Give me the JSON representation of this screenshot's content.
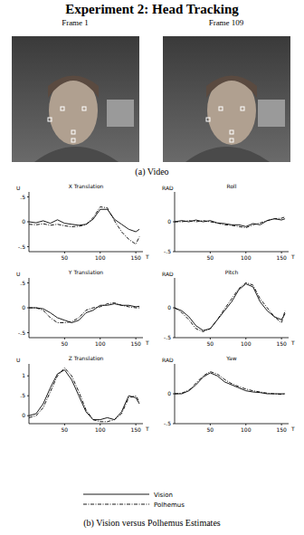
{
  "figure": {
    "title": "Experiment 2: Head Tracking",
    "frames": [
      "Frame 1",
      "Frame 109"
    ],
    "caption_a": "(a) Video",
    "caption_b": "(b) Vision versus Polhemus Estimates"
  },
  "chart_data": [
    {
      "type": "line",
      "title": "X Translation",
      "ylabel": "U",
      "xlabel": "T",
      "x": [
        0,
        10,
        20,
        30,
        40,
        50,
        60,
        70,
        80,
        90,
        100,
        110,
        120,
        130,
        140,
        150,
        155
      ],
      "xlim": [
        0,
        160
      ],
      "xticks": [
        50,
        100,
        150
      ],
      "ylim": [
        -0.6,
        0.6
      ],
      "yticks": [
        {
          "value": 0.5,
          "label": ".5"
        },
        0,
        {
          "value": -0.5,
          "label": "-.5"
        }
      ],
      "series": [
        {
          "name": "Vision",
          "color": "#000000",
          "line_style": "solid",
          "values": [
            0,
            -0.02,
            0.02,
            -0.03,
            0.04,
            -0.03,
            -0.05,
            -0.07,
            -0.05,
            0.05,
            0.25,
            0.25,
            0.05,
            -0.05,
            -0.15,
            -0.2,
            -0.15
          ]
        },
        {
          "name": "Polhemus",
          "color": "#000000",
          "line_style": "dashdot",
          "values": [
            -0.05,
            -0.06,
            -0.04,
            -0.07,
            -0.05,
            -0.08,
            -0.1,
            -0.09,
            -0.06,
            0.08,
            0.3,
            0.28,
            0.02,
            -0.2,
            -0.35,
            -0.45,
            -0.3
          ]
        }
      ]
    },
    {
      "type": "line",
      "title": "Y Translation",
      "ylabel": "U",
      "xlabel": "T",
      "x": [
        0,
        10,
        20,
        30,
        40,
        50,
        60,
        70,
        80,
        90,
        100,
        110,
        120,
        130,
        140,
        150,
        155
      ],
      "xlim": [
        0,
        160
      ],
      "xticks": [
        50,
        100,
        150
      ],
      "ylim": [
        -0.6,
        0.6
      ],
      "yticks": [
        {
          "value": 0.5,
          "label": ".5"
        },
        0,
        {
          "value": -0.5,
          "label": "-.5"
        }
      ],
      "series": [
        {
          "name": "Vision",
          "color": "#000000",
          "line_style": "solid",
          "values": [
            0,
            0,
            -0.02,
            -0.1,
            -0.2,
            -0.25,
            -0.3,
            -0.25,
            -0.1,
            -0.05,
            0.05,
            0.05,
            0.08,
            0.05,
            0.05,
            0.02,
            0.03
          ]
        },
        {
          "name": "Polhemus",
          "color": "#000000",
          "line_style": "dashdot",
          "values": [
            0,
            0,
            -0.05,
            -0.2,
            -0.3,
            -0.3,
            -0.28,
            -0.2,
            -0.05,
            0,
            0.02,
            0.08,
            0.1,
            0.05,
            0.02,
            0,
            0
          ]
        }
      ]
    },
    {
      "type": "line",
      "title": "Z Translation",
      "ylabel": "U",
      "xlabel": "T",
      "x": [
        0,
        10,
        20,
        30,
        40,
        50,
        60,
        70,
        80,
        90,
        100,
        110,
        120,
        130,
        140,
        150,
        155
      ],
      "xlim": [
        0,
        160
      ],
      "xticks": [
        50,
        100,
        150
      ],
      "ylim": [
        -0.2,
        1.3
      ],
      "yticks": [
        1,
        {
          "value": 0.5,
          "label": ".5"
        },
        0
      ],
      "series": [
        {
          "name": "Vision",
          "color": "#000000",
          "line_style": "solid",
          "values": [
            0,
            0.05,
            0.3,
            0.7,
            1.05,
            1.15,
            0.9,
            0.5,
            0.1,
            -0.1,
            -0.1,
            -0.05,
            -0.1,
            0.1,
            0.5,
            0.45,
            0.3
          ]
        },
        {
          "name": "Polhemus",
          "color": "#000000",
          "line_style": "dashdot",
          "values": [
            -0.05,
            0,
            0.2,
            0.6,
            1.0,
            1.2,
            1.0,
            0.6,
            0.15,
            -0.1,
            -0.15,
            -0.15,
            -0.1,
            0.05,
            0.45,
            0.5,
            0.35
          ]
        }
      ]
    },
    {
      "type": "line",
      "title": "Roll",
      "ylabel": "RAD",
      "xlabel": "T",
      "x": [
        0,
        10,
        20,
        30,
        40,
        50,
        60,
        70,
        80,
        90,
        100,
        110,
        120,
        130,
        140,
        150,
        155
      ],
      "xlim": [
        0,
        160
      ],
      "xticks": [
        50,
        100,
        150
      ],
      "ylim": [
        -0.5,
        0.5
      ],
      "yticks": [
        0,
        {
          "value": -0.5,
          "label": "-.5"
        }
      ],
      "series": [
        {
          "name": "Vision",
          "color": "#000000",
          "line_style": "solid",
          "values": [
            0,
            0.02,
            0,
            0.03,
            0,
            0.02,
            -0.02,
            -0.03,
            -0.05,
            -0.05,
            -0.08,
            -0.03,
            -0.05,
            0.02,
            0.05,
            0.03,
            0.05
          ]
        },
        {
          "name": "Polhemus",
          "color": "#000000",
          "line_style": "dashdot",
          "values": [
            0,
            0,
            0.02,
            0,
            0.02,
            0,
            -0.02,
            -0.05,
            -0.06,
            -0.08,
            -0.1,
            -0.05,
            -0.02,
            0.02,
            0.05,
            0.06,
            0.08
          ]
        }
      ]
    },
    {
      "type": "line",
      "title": "Pitch",
      "ylabel": "RAD",
      "xlabel": "T",
      "x": [
        0,
        10,
        20,
        30,
        40,
        50,
        60,
        70,
        80,
        90,
        100,
        110,
        120,
        130,
        140,
        150,
        155
      ],
      "xlim": [
        0,
        160
      ],
      "xticks": [
        50,
        100,
        150
      ],
      "ylim": [
        -0.5,
        0.5
      ],
      "yticks": [
        0,
        {
          "value": -0.5,
          "label": "-.5"
        }
      ],
      "series": [
        {
          "name": "Vision",
          "color": "#000000",
          "line_style": "solid",
          "values": [
            0,
            -0.05,
            -0.15,
            -0.3,
            -0.38,
            -0.35,
            -0.2,
            -0.05,
            0.1,
            0.3,
            0.4,
            0.35,
            0.1,
            -0.05,
            -0.15,
            -0.2,
            -0.1
          ]
        },
        {
          "name": "Polhemus",
          "color": "#000000",
          "line_style": "dashdot",
          "values": [
            0,
            -0.08,
            -0.2,
            -0.35,
            -0.4,
            -0.35,
            -0.2,
            -0.02,
            0.15,
            0.32,
            0.42,
            0.38,
            0.15,
            0,
            -0.15,
            -0.25,
            -0.05
          ]
        }
      ]
    },
    {
      "type": "line",
      "title": "Yaw",
      "ylabel": "RAD",
      "xlabel": "T",
      "x": [
        0,
        10,
        20,
        30,
        40,
        50,
        60,
        70,
        80,
        90,
        100,
        110,
        120,
        130,
        140,
        150,
        155
      ],
      "xlim": [
        0,
        160
      ],
      "xticks": [
        50,
        100,
        150
      ],
      "ylim": [
        -0.5,
        0.5
      ],
      "yticks": [
        0,
        {
          "value": -0.5,
          "label": "-.5"
        }
      ],
      "series": [
        {
          "name": "Vision",
          "color": "#000000",
          "line_style": "solid",
          "values": [
            0,
            0,
            0.05,
            0.15,
            0.28,
            0.35,
            0.3,
            0.2,
            0.15,
            0.1,
            0.05,
            0.03,
            0.02,
            0,
            0,
            0,
            0
          ]
        },
        {
          "name": "Polhemus",
          "color": "#000000",
          "line_style": "dashdot",
          "values": [
            0,
            0.01,
            0.06,
            0.18,
            0.3,
            0.37,
            0.33,
            0.24,
            0.17,
            0.12,
            0.08,
            0.05,
            0.03,
            0.01,
            0,
            -0.01,
            0
          ]
        }
      ]
    }
  ]
}
